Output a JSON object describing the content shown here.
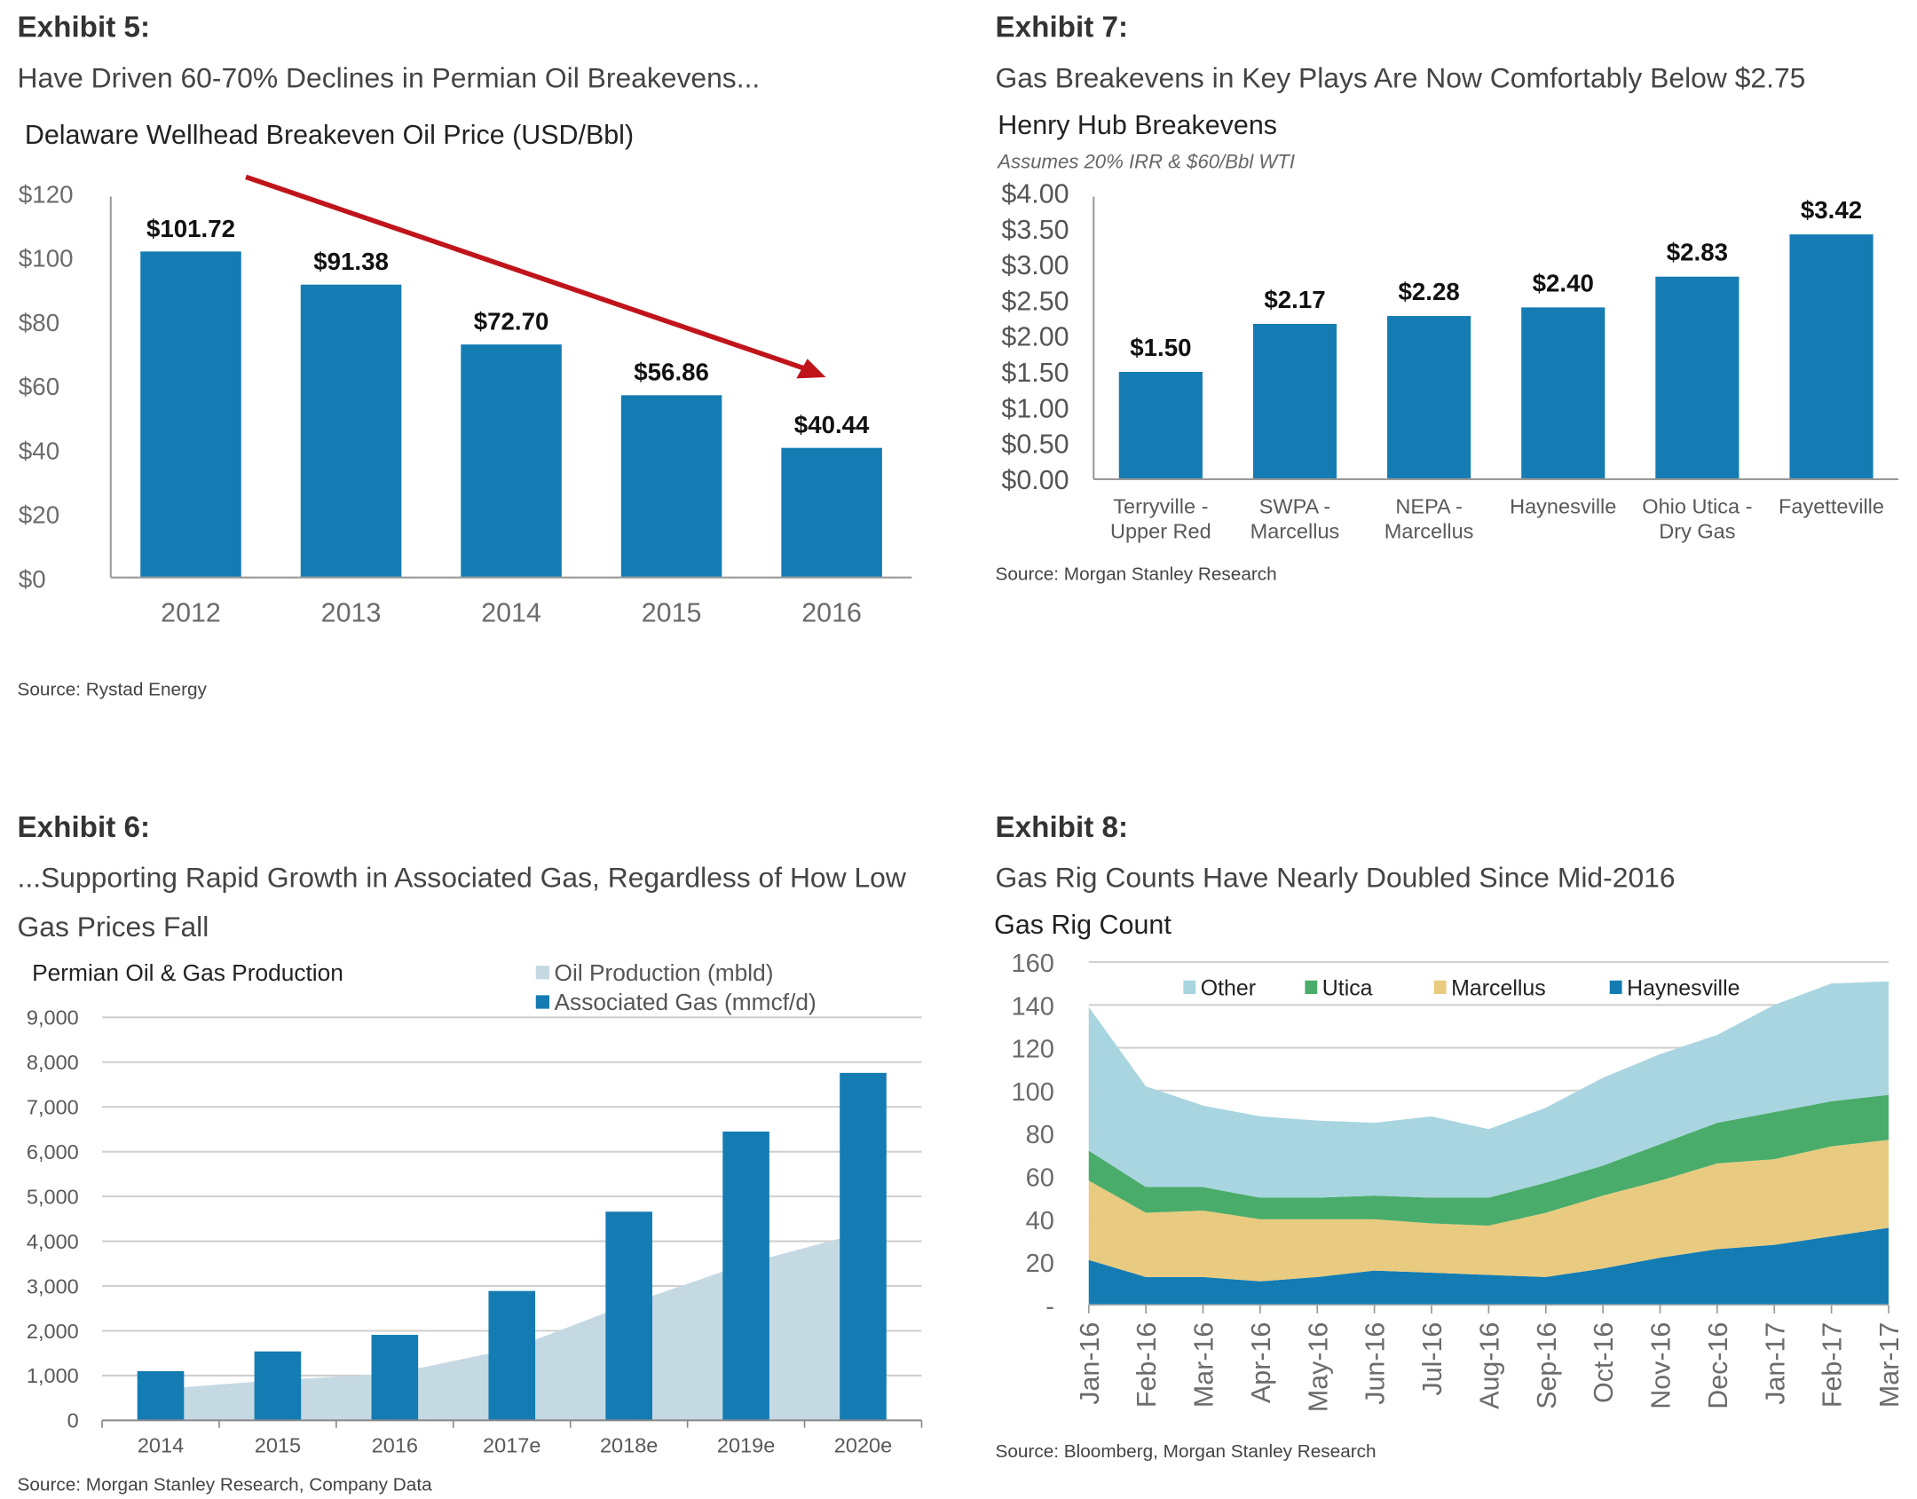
{
  "exhibits": [
    {
      "label": "Exhibit 5:",
      "subtitle": "Have Driven 60-70% Declines in Permian Oil Breakevens...",
      "source": "Source: Rystad Energy"
    },
    {
      "label": "Exhibit 7:",
      "subtitle": "Gas Breakevens in Key Plays Are Now Comfortably Below $2.75",
      "source": "Source: Morgan Stanley Research"
    },
    {
      "label": "Exhibit 6:",
      "subtitle_lines": [
        "...Supporting Rapid Growth in Associated Gas, Regardless of How Low",
        "Gas Prices Fall"
      ],
      "source": "Source: Morgan Stanley Research, Company Data"
    },
    {
      "label": "Exhibit 8:",
      "subtitle": "Gas Rig Counts Have Nearly Doubled Since Mid-2016",
      "source": "Source: Bloomberg, Morgan Stanley Research"
    }
  ],
  "chart_data": [
    {
      "type": "bar",
      "title": "Delaware Wellhead Breakeven Oil Price (USD/Bbl)",
      "categories": [
        "2012",
        "2013",
        "2014",
        "2015",
        "2016"
      ],
      "values": [
        101.72,
        91.38,
        72.7,
        56.86,
        40.44
      ],
      "data_labels": [
        "$101.72",
        "$91.38",
        "$72.70",
        "$56.86",
        "$40.44"
      ],
      "yticks": [
        "$0",
        "$20",
        "$40",
        "$60",
        "$80",
        "$100",
        "$120"
      ],
      "ylim": [
        0,
        120
      ],
      "grid": false,
      "annotation": "red downward trend arrow",
      "colors": {
        "bar": "#147cb3",
        "arrow": "#c0141b"
      }
    },
    {
      "type": "bar",
      "title": "Henry Hub Breakevens",
      "subtitle": "Assumes 20% IRR & $60/Bbl WTI",
      "categories": [
        [
          "Terryville -",
          "Upper Red"
        ],
        [
          "SWPA -",
          "Marcellus"
        ],
        [
          "NEPA -",
          "Marcellus"
        ],
        [
          "Haynesville"
        ],
        [
          "Ohio Utica -",
          "Dry Gas"
        ],
        [
          "Fayetteville"
        ]
      ],
      "values": [
        1.5,
        2.17,
        2.28,
        2.4,
        2.83,
        3.42
      ],
      "data_labels": [
        "$1.50",
        "$2.17",
        "$2.28",
        "$2.40",
        "$2.83",
        "$3.42"
      ],
      "yticks": [
        "$0.00",
        "$0.50",
        "$1.00",
        "$1.50",
        "$2.00",
        "$2.50",
        "$3.00",
        "$3.50",
        "$4.00"
      ],
      "ylim": [
        0,
        4
      ],
      "grid": false,
      "colors": {
        "bar": "#147cb3"
      }
    },
    {
      "type": "bar",
      "title": "Permian Oil & Gas Production",
      "categories": [
        "2014",
        "2015",
        "2016",
        "2017e",
        "2018e",
        "2019e",
        "2020e"
      ],
      "series": [
        {
          "name": "Oil Production (mbld)",
          "type": "area",
          "values": [
            700,
            900,
            1050,
            1600,
            2600,
            3500,
            4200
          ],
          "color": "#c5d9e3"
        },
        {
          "name": "Associated Gas (mmcf/d)",
          "type": "bar",
          "values": [
            1100,
            1540,
            1910,
            2890,
            4660,
            6450,
            7760
          ],
          "color": "#147cb3"
        }
      ],
      "yticks": [
        "0",
        "1,000",
        "2,000",
        "3,000",
        "4,000",
        "5,000",
        "6,000",
        "7,000",
        "8,000",
        "9,000"
      ],
      "ylim": [
        0,
        9000
      ],
      "grid": true,
      "legend": "top-right"
    },
    {
      "type": "area",
      "stacked": true,
      "title": "Gas Rig Count",
      "categories": [
        "Jan-16",
        "Feb-16",
        "Mar-16",
        "Apr-16",
        "May-16",
        "Jun-16",
        "Jul-16",
        "Aug-16",
        "Sep-16",
        "Oct-16",
        "Nov-16",
        "Dec-16",
        "Jan-17",
        "Feb-17",
        "Mar-17"
      ],
      "series": [
        {
          "name": "Haynesville",
          "values": [
            21,
            13,
            13,
            11,
            13,
            16,
            15,
            14,
            13,
            17,
            22,
            26,
            28,
            32,
            36
          ],
          "color": "#147cb3"
        },
        {
          "name": "Marcellus",
          "values": [
            37,
            30,
            31,
            29,
            27,
            24,
            23,
            23,
            30,
            34,
            36,
            40,
            40,
            42,
            41
          ],
          "color": "#e8cb80"
        },
        {
          "name": "Utica",
          "values": [
            14,
            12,
            11,
            10,
            10,
            11,
            12,
            13,
            14,
            14,
            17,
            19,
            22,
            21,
            21
          ],
          "color": "#4aac6a"
        },
        {
          "name": "Other",
          "values": [
            67,
            47,
            38,
            38,
            36,
            34,
            38,
            32,
            35,
            41,
            42,
            41,
            50,
            55,
            53
          ],
          "color": "#a8d5e0"
        }
      ],
      "legend_order": [
        "Other",
        "Utica",
        "Marcellus",
        "Haynesville"
      ],
      "yticks": [
        "-",
        "20",
        "40",
        "60",
        "80",
        "100",
        "120",
        "140",
        "160"
      ],
      "ylim": [
        0,
        160
      ],
      "grid": true,
      "legend": "top"
    }
  ]
}
